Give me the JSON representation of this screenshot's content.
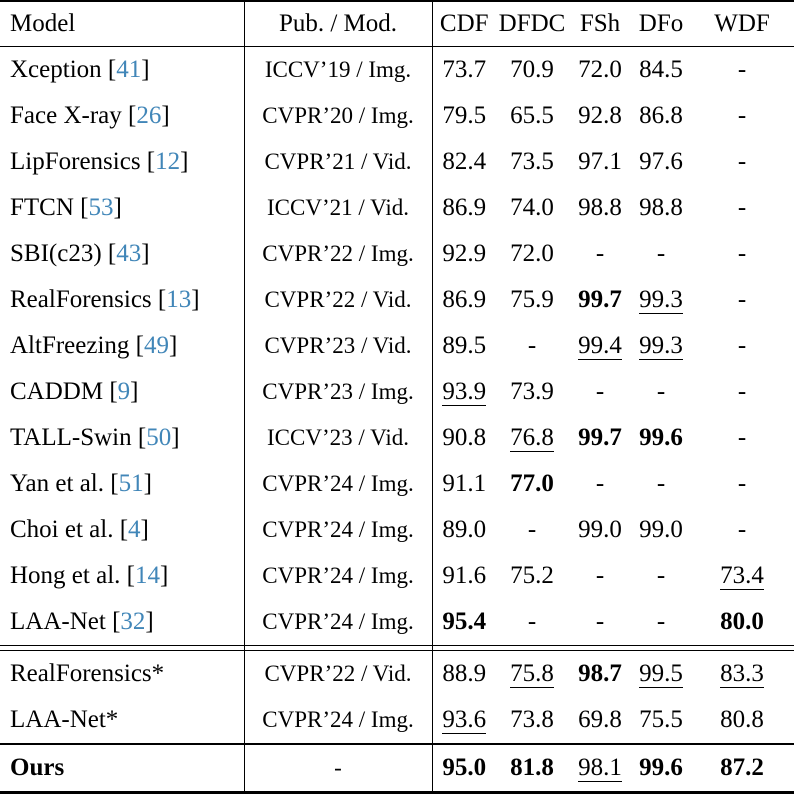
{
  "colors": {
    "citation": "#4186b8",
    "text": "#000000",
    "background": "#ffffff",
    "rule": "#000000"
  },
  "header": {
    "columns": [
      "Model",
      "Pub. / Mod.",
      "CDF",
      "DFDC",
      "FSh",
      "DFo",
      "WDF"
    ]
  },
  "sections": [
    {
      "name": "prior-methods",
      "rows": [
        {
          "model": {
            "name": "Xception",
            "cite": "41"
          },
          "pub": "ICCV’19 / Img.",
          "values": [
            {
              "t": "73.7"
            },
            {
              "t": "70.9"
            },
            {
              "t": "72.0"
            },
            {
              "t": "84.5"
            },
            {
              "t": "-"
            }
          ]
        },
        {
          "model": {
            "name": "Face X-ray",
            "cite": "26"
          },
          "pub": "CVPR’20 / Img.",
          "values": [
            {
              "t": "79.5"
            },
            {
              "t": "65.5"
            },
            {
              "t": "92.8"
            },
            {
              "t": "86.8"
            },
            {
              "t": "-"
            }
          ]
        },
        {
          "model": {
            "name": "LipForensics",
            "cite": "12"
          },
          "pub": "CVPR’21 / Vid.",
          "values": [
            {
              "t": "82.4"
            },
            {
              "t": "73.5"
            },
            {
              "t": "97.1"
            },
            {
              "t": "97.6"
            },
            {
              "t": "-"
            }
          ]
        },
        {
          "model": {
            "name": "FTCN",
            "cite": "53"
          },
          "pub": "ICCV’21 / Vid.",
          "values": [
            {
              "t": "86.9"
            },
            {
              "t": "74.0"
            },
            {
              "t": "98.8"
            },
            {
              "t": "98.8"
            },
            {
              "t": "-"
            }
          ]
        },
        {
          "model": {
            "name": "SBI(c23)",
            "cite": "43"
          },
          "pub": "CVPR’22 / Img.",
          "values": [
            {
              "t": "92.9"
            },
            {
              "t": "72.0"
            },
            {
              "t": "-"
            },
            {
              "t": "-"
            },
            {
              "t": "-"
            }
          ]
        },
        {
          "model": {
            "name": "RealForensics",
            "cite": "13"
          },
          "pub": "CVPR’22 / Vid.",
          "values": [
            {
              "t": "86.9"
            },
            {
              "t": "75.9"
            },
            {
              "t": "99.7",
              "b": true
            },
            {
              "t": "99.3",
              "u": true
            },
            {
              "t": "-"
            }
          ]
        },
        {
          "model": {
            "name": "AltFreezing",
            "cite": "49"
          },
          "pub": "CVPR’23 / Vid.",
          "values": [
            {
              "t": "89.5"
            },
            {
              "t": "-"
            },
            {
              "t": "99.4",
              "u": true
            },
            {
              "t": "99.3",
              "u": true
            },
            {
              "t": "-"
            }
          ]
        },
        {
          "model": {
            "name": "CADDM",
            "cite": "9"
          },
          "pub": "CVPR’23 / Img.",
          "values": [
            {
              "t": "93.9",
              "u": true
            },
            {
              "t": "73.9"
            },
            {
              "t": "-"
            },
            {
              "t": "-"
            },
            {
              "t": "-"
            }
          ]
        },
        {
          "model": {
            "name": "TALL-Swin",
            "cite": "50"
          },
          "pub": "ICCV’23 / Vid.",
          "values": [
            {
              "t": "90.8"
            },
            {
              "t": "76.8",
              "u": true
            },
            {
              "t": "99.7",
              "b": true
            },
            {
              "t": "99.6",
              "b": true
            },
            {
              "t": "-"
            }
          ]
        },
        {
          "model": {
            "name": "Yan et al.",
            "cite": "51"
          },
          "pub": "CVPR’24 / Img.",
          "values": [
            {
              "t": "91.1"
            },
            {
              "t": "77.0",
              "b": true
            },
            {
              "t": "-"
            },
            {
              "t": "-"
            },
            {
              "t": "-"
            }
          ]
        },
        {
          "model": {
            "name": "Choi et al.",
            "cite": "4"
          },
          "pub": "CVPR’24 / Img.",
          "values": [
            {
              "t": "89.0"
            },
            {
              "t": "-"
            },
            {
              "t": "99.0"
            },
            {
              "t": "99.0"
            },
            {
              "t": "-"
            }
          ]
        },
        {
          "model": {
            "name": "Hong et al.",
            "cite": "14"
          },
          "pub": "CVPR’24 / Img.",
          "values": [
            {
              "t": "91.6"
            },
            {
              "t": "75.2"
            },
            {
              "t": "-"
            },
            {
              "t": "-"
            },
            {
              "t": "73.4",
              "u": true
            }
          ]
        },
        {
          "model": {
            "name": "LAA-Net",
            "cite": "32"
          },
          "pub": "CVPR’24 / Img.",
          "values": [
            {
              "t": "95.4",
              "b": true
            },
            {
              "t": "-"
            },
            {
              "t": "-"
            },
            {
              "t": "-"
            },
            {
              "t": "80.0",
              "b": true
            }
          ]
        }
      ]
    },
    {
      "name": "reproduced-methods",
      "rows": [
        {
          "model": {
            "name": "RealForensics*"
          },
          "pub": "CVPR’22 / Vid.",
          "values": [
            {
              "t": "88.9"
            },
            {
              "t": "75.8",
              "u": true
            },
            {
              "t": "98.7",
              "b": true
            },
            {
              "t": "99.5",
              "u": true
            },
            {
              "t": "83.3",
              "u": true
            }
          ]
        },
        {
          "model": {
            "name": "LAA-Net*"
          },
          "pub": "CVPR’24 / Img.",
          "values": [
            {
              "t": "93.6",
              "u": true
            },
            {
              "t": "73.8"
            },
            {
              "t": "69.8"
            },
            {
              "t": "75.5"
            },
            {
              "t": "80.8"
            }
          ]
        }
      ]
    },
    {
      "name": "ours",
      "rows": [
        {
          "model": {
            "name": "Ours",
            "bold": true
          },
          "pub": "-",
          "values": [
            {
              "t": "95.0",
              "b": true
            },
            {
              "t": "81.8",
              "b": true
            },
            {
              "t": "98.1",
              "u": true
            },
            {
              "t": "99.6",
              "b": true
            },
            {
              "t": "87.2",
              "b": true
            }
          ]
        }
      ]
    }
  ]
}
